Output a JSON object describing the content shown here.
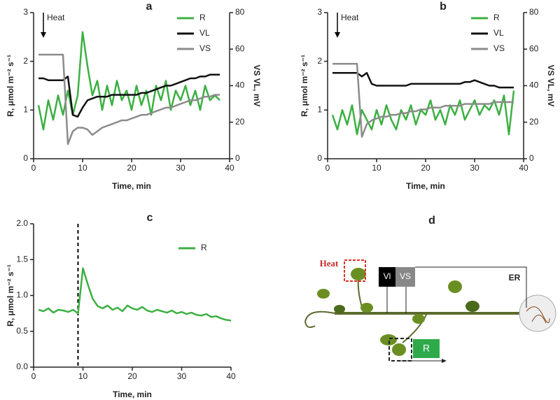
{
  "chart_data": [
    {
      "type": "line",
      "title": "a",
      "xlabel": "Time, min",
      "ylabel": "R, μmol m⁻² s⁻¹",
      "y2label": "VS VL, mV",
      "xlim": [
        0,
        40
      ],
      "xticks": [
        0,
        10,
        20,
        30,
        40
      ],
      "ylim": [
        0,
        3
      ],
      "yticks": [
        0,
        1,
        2,
        3
      ],
      "y2lim": [
        0,
        80
      ],
      "y2ticks": [
        0,
        20,
        40,
        60,
        80
      ],
      "legend": "upper right",
      "annotation": {
        "text": "Heat",
        "x": 2
      },
      "x": [
        1,
        2,
        3,
        4,
        5,
        6,
        7,
        8,
        9,
        10,
        11,
        12,
        13,
        14,
        15,
        16,
        17,
        18,
        19,
        20,
        21,
        22,
        23,
        24,
        25,
        26,
        27,
        28,
        29,
        30,
        31,
        32,
        33,
        34,
        35,
        36,
        37,
        38
      ],
      "series": [
        {
          "name": "R",
          "color": "#3cb043",
          "values": [
            1.1,
            0.6,
            1.2,
            0.8,
            1.3,
            0.9,
            1.4,
            0.9,
            1.3,
            2.6,
            1.9,
            1.3,
            1.6,
            1.0,
            1.5,
            1.1,
            1.6,
            1.2,
            1.4,
            1.0,
            1.5,
            1.1,
            1.4,
            0.9,
            1.5,
            1.2,
            1.6,
            1.0,
            1.4,
            1.2,
            1.5,
            1.1,
            1.4,
            1.0,
            1.5,
            1.2,
            1.3,
            1.2
          ]
        },
        {
          "name": "VL",
          "color": "#111111",
          "axis": "y2",
          "values": [
            44,
            44,
            43,
            43,
            43,
            43,
            45,
            24,
            23,
            28,
            32,
            33,
            34,
            34,
            34,
            35,
            35,
            35,
            35,
            35,
            35,
            36,
            36,
            37,
            38,
            39,
            40,
            40,
            41,
            42,
            43,
            44,
            44,
            45,
            45,
            46,
            46,
            46
          ]
        },
        {
          "name": "VS",
          "color": "#8c8c8c",
          "axis": "y2",
          "values": [
            57,
            57,
            57,
            57,
            57,
            57,
            8,
            15,
            17,
            17,
            16,
            13,
            15,
            17,
            18,
            19,
            20,
            21,
            21,
            22,
            23,
            24,
            24,
            25,
            26,
            27,
            28,
            28,
            29,
            30,
            31,
            32,
            32,
            33,
            34,
            34,
            35,
            35
          ]
        }
      ]
    },
    {
      "type": "line",
      "title": "b",
      "xlabel": "Time, min",
      "ylabel": "R, μmol m⁻² s⁻¹",
      "y2label": "VS VL, mV",
      "xlim": [
        0,
        40
      ],
      "xticks": [
        0,
        10,
        20,
        30,
        40
      ],
      "ylim": [
        0,
        3
      ],
      "yticks": [
        0,
        1,
        2,
        3
      ],
      "y2lim": [
        0,
        80
      ],
      "y2ticks": [
        0,
        20,
        40,
        60,
        80
      ],
      "legend": "upper right",
      "annotation": {
        "text": "Heat",
        "x": 2
      },
      "x": [
        1,
        2,
        3,
        4,
        5,
        6,
        7,
        8,
        9,
        10,
        11,
        12,
        13,
        14,
        15,
        16,
        17,
        18,
        19,
        20,
        21,
        22,
        23,
        24,
        25,
        26,
        27,
        28,
        29,
        30,
        31,
        32,
        33,
        34,
        35,
        36,
        37,
        38
      ],
      "series": [
        {
          "name": "R",
          "color": "#3cb043",
          "values": [
            0.9,
            0.6,
            1.0,
            0.7,
            1.1,
            0.5,
            1.0,
            0.8,
            0.6,
            1.0,
            0.7,
            1.1,
            0.8,
            0.6,
            1.0,
            0.8,
            1.1,
            0.7,
            1.0,
            0.9,
            1.2,
            0.8,
            1.0,
            0.7,
            1.1,
            0.9,
            1.2,
            0.8,
            1.0,
            1.2,
            0.9,
            1.1,
            1.0,
            1.2,
            0.9,
            1.3,
            0.5,
            1.4
          ]
        },
        {
          "name": "VL",
          "color": "#111111",
          "axis": "y2",
          "values": [
            47,
            47,
            47,
            47,
            47,
            47,
            45,
            47,
            41,
            40,
            40,
            40,
            40,
            40,
            40,
            40,
            41,
            41,
            41,
            41,
            41,
            41,
            41,
            41,
            41,
            41,
            41,
            42,
            42,
            43,
            42,
            41,
            40,
            40,
            39,
            39,
            39,
            39
          ]
        },
        {
          "name": "VS",
          "color": "#8c8c8c",
          "axis": "y2",
          "values": [
            52,
            52,
            52,
            52,
            52,
            52,
            12,
            19,
            21,
            22,
            23,
            23,
            24,
            24,
            25,
            25,
            26,
            26,
            27,
            27,
            28,
            28,
            28,
            29,
            29,
            29,
            29,
            30,
            30,
            30,
            30,
            30,
            30,
            31,
            31,
            31,
            31,
            31
          ]
        }
      ]
    },
    {
      "type": "line",
      "title": "c",
      "xlabel": "Time, min",
      "ylabel": "R, μmol m⁻² s⁻¹",
      "xlim": [
        0,
        40
      ],
      "xticks": [
        0,
        10,
        20,
        30,
        40
      ],
      "ylim": [
        0,
        2
      ],
      "yticks": [
        {
          "value": 0,
          "label": "0.0"
        },
        0.5,
        {
          "value": 1,
          "label": "1.0"
        },
        1.5,
        {
          "value": 2,
          "label": "2.0"
        }
      ],
      "legend": "upper right",
      "vline": 9,
      "x": [
        1,
        2,
        3,
        4,
        5,
        6,
        7,
        8,
        9,
        10,
        11,
        12,
        13,
        14,
        15,
        16,
        17,
        18,
        19,
        20,
        21,
        22,
        23,
        24,
        25,
        26,
        27,
        28,
        29,
        30,
        31,
        32,
        33,
        34,
        35,
        36,
        37,
        38,
        39,
        40
      ],
      "series": [
        {
          "name": "R",
          "color": "#3cb043",
          "values": [
            0.8,
            0.78,
            0.82,
            0.76,
            0.8,
            0.79,
            0.77,
            0.8,
            0.75,
            1.38,
            1.15,
            0.95,
            0.85,
            0.82,
            0.86,
            0.8,
            0.83,
            0.78,
            0.86,
            0.82,
            0.8,
            0.84,
            0.79,
            0.77,
            0.8,
            0.78,
            0.76,
            0.79,
            0.75,
            0.77,
            0.74,
            0.76,
            0.73,
            0.72,
            0.74,
            0.7,
            0.71,
            0.68,
            0.66,
            0.65
          ]
        }
      ]
    }
  ],
  "diagram": {
    "label": "d",
    "heat": "Heat",
    "vl": "Vl",
    "vs": "VS",
    "er": "ER",
    "r": "R"
  }
}
